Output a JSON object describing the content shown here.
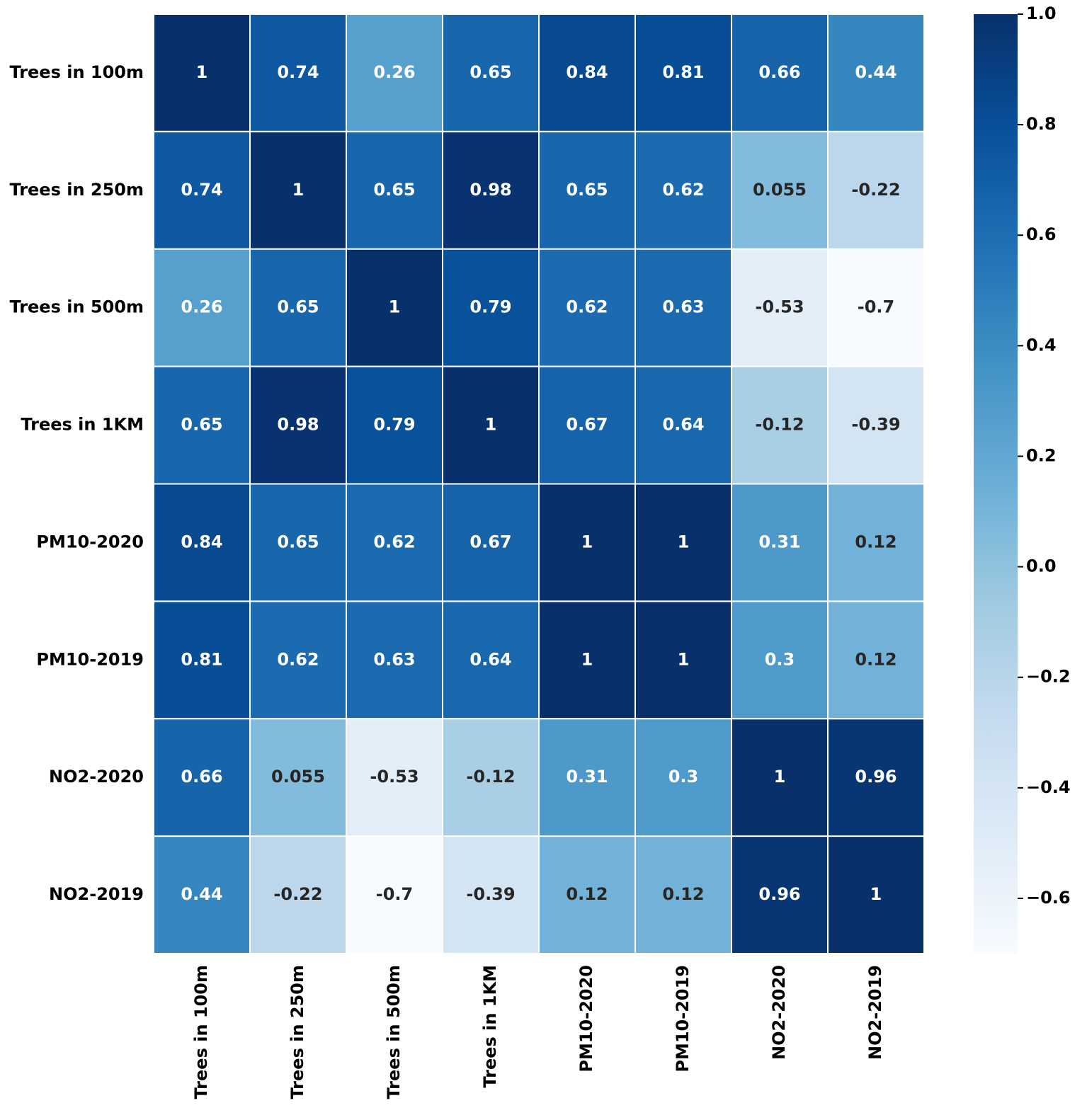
{
  "chart_data": {
    "type": "heatmap",
    "categories": [
      "Trees in 100m",
      "Trees in 250m",
      "Trees in 500m",
      "Trees in 1KM",
      "PM10-2020",
      "PM10-2019",
      "NO2-2020",
      "NO2-2019"
    ],
    "values": [
      [
        1,
        0.74,
        0.26,
        0.65,
        0.84,
        0.81,
        0.66,
        0.44
      ],
      [
        0.74,
        1,
        0.65,
        0.98,
        0.65,
        0.62,
        0.055,
        -0.22
      ],
      [
        0.26,
        0.65,
        1,
        0.79,
        0.62,
        0.63,
        -0.53,
        -0.7
      ],
      [
        0.65,
        0.98,
        0.79,
        1,
        0.67,
        0.64,
        -0.12,
        -0.39
      ],
      [
        0.84,
        0.65,
        0.62,
        0.67,
        1,
        1,
        0.31,
        0.12
      ],
      [
        0.81,
        0.62,
        0.63,
        0.64,
        1,
        1,
        0.3,
        0.12
      ],
      [
        0.66,
        0.055,
        -0.53,
        -0.12,
        0.31,
        0.3,
        1,
        0.96
      ],
      [
        0.44,
        -0.22,
        -0.7,
        -0.39,
        0.12,
        0.12,
        0.96,
        1
      ]
    ],
    "colormap": "Blues",
    "clim": [
      -0.7,
      1.0
    ],
    "cticks": [
      {
        "value": 1.0,
        "label": "1.0"
      },
      0.8,
      0.6,
      0.4,
      0.2,
      {
        "value": 0.0,
        "label": "0.0"
      },
      {
        "value": -0.2,
        "label": "−0.2"
      },
      {
        "value": -0.4,
        "label": "−0.4"
      },
      {
        "value": -0.6,
        "label": "−0.6"
      }
    ]
  }
}
